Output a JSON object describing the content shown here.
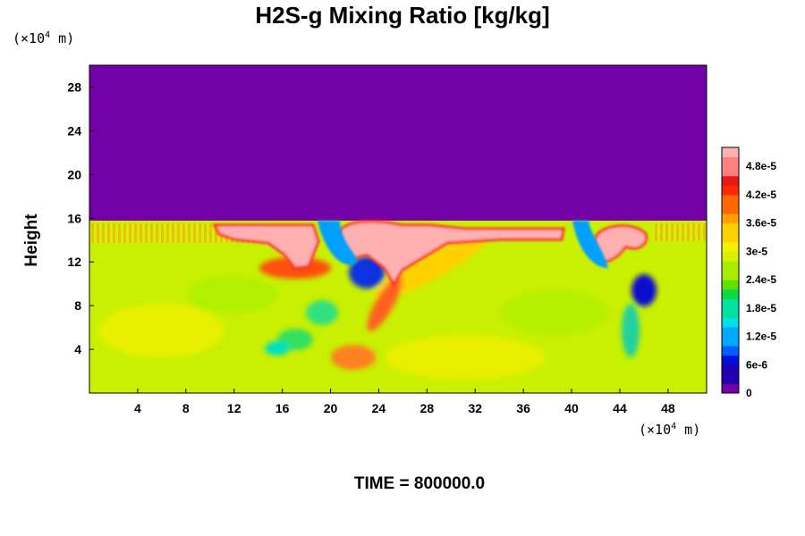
{
  "title": "H2S-g Mixing Ratio [kg/kg]",
  "y_unit": {
    "prefix": "(×10",
    "exp": "4",
    "suffix": " m)"
  },
  "x_unit": {
    "prefix": "(×10",
    "exp": "4",
    "suffix": " m)"
  },
  "ylabel": "Height",
  "time_label": "TIME = 800000.0",
  "chart_data": {
    "type": "heatmap",
    "title": "H2S-g Mixing Ratio [kg/kg]",
    "xlabel": "",
    "ylabel": "Height",
    "x_ticks": [
      "4",
      "8",
      "12",
      "16",
      "20",
      "24",
      "28",
      "32",
      "36",
      "40",
      "44",
      "48"
    ],
    "y_ticks": [
      "4",
      "8",
      "12",
      "16",
      "20",
      "24",
      "28"
    ],
    "xlim": [
      0,
      51.2
    ],
    "ylim": [
      0,
      30
    ],
    "colorbar_ticks": [
      "0",
      "6e-6",
      "1.2e-5",
      "1.8e-5",
      "2.4e-5",
      "3e-5",
      "3.6e-5",
      "4.2e-5",
      "4.8e-5"
    ],
    "colorbar_range": [
      0,
      5.2e-05
    ],
    "colors": {
      "zero": "#7400a8",
      "background_lower": "#c8f000",
      "high": "#ffb0b0"
    },
    "layer_top_height": 15.6,
    "time": "800000.0"
  }
}
